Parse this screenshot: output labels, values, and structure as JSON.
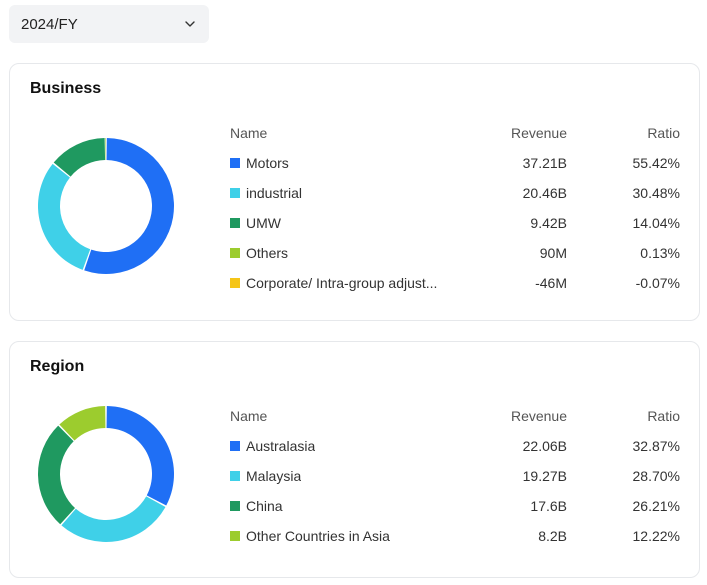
{
  "period_select": {
    "value": "2024/FY"
  },
  "headers": {
    "name": "Name",
    "revenue": "Revenue",
    "ratio": "Ratio"
  },
  "business": {
    "title": "Business",
    "items": [
      {
        "name": "Motors",
        "revenue": "37.21B",
        "ratio": "55.42%",
        "pct": 55.42,
        "color": "#1f6ff5"
      },
      {
        "name": "industrial",
        "revenue": "20.46B",
        "ratio": "30.48%",
        "pct": 30.48,
        "color": "#3fd0e8"
      },
      {
        "name": "UMW",
        "revenue": "9.42B",
        "ratio": "14.04%",
        "pct": 14.04,
        "color": "#1f9960"
      },
      {
        "name": "Others",
        "revenue": "90M",
        "ratio": "0.13%",
        "pct": 0.13,
        "color": "#9ccc2e"
      },
      {
        "name": "Corporate/ Intra-group adjust...",
        "revenue": "-46M",
        "ratio": "-0.07%",
        "pct": -0.07,
        "color": "#f5c518"
      }
    ]
  },
  "region": {
    "title": "Region",
    "items": [
      {
        "name": "Australasia",
        "revenue": "22.06B",
        "ratio": "32.87%",
        "pct": 32.87,
        "color": "#1f6ff5"
      },
      {
        "name": "Malaysia",
        "revenue": "19.27B",
        "ratio": "28.70%",
        "pct": 28.7,
        "color": "#3fd0e8"
      },
      {
        "name": "China",
        "revenue": "17.6B",
        "ratio": "26.21%",
        "pct": 26.21,
        "color": "#1f9960"
      },
      {
        "name": "Other Countries in Asia",
        "revenue": "8.2B",
        "ratio": "12.22%",
        "pct": 12.22,
        "color": "#9ccc2e"
      }
    ]
  }
}
